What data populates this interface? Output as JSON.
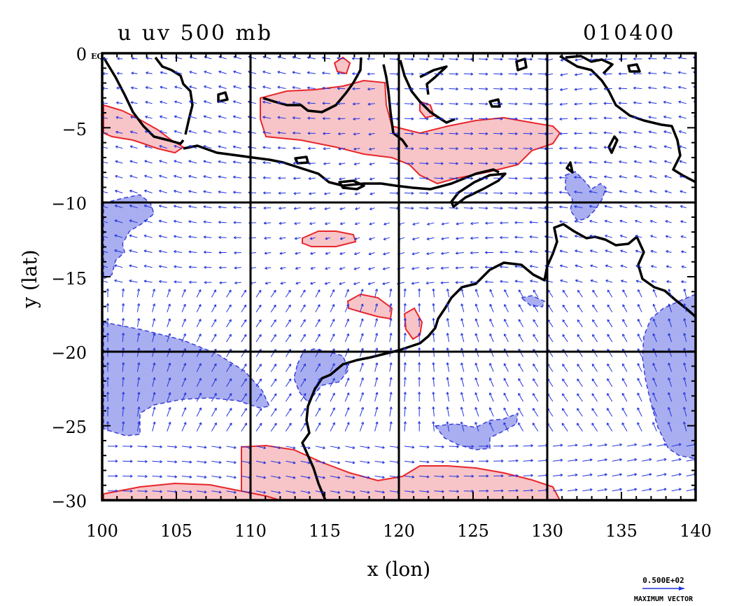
{
  "title_left": "u uv 500 mb",
  "title_right": "010400",
  "chart_data": {
    "type": "map",
    "title": "u uv 500 mb",
    "timestamp": "010400",
    "xlabel": "x (lon)",
    "ylabel": "y (lat)",
    "xlim": [
      100,
      140
    ],
    "ylim": [
      -30,
      0
    ],
    "x_ticks": [
      "100",
      "105",
      "110",
      "115",
      "120",
      "125",
      "130",
      "135",
      "140"
    ],
    "y_ticks": [
      "0",
      "−5",
      "−10",
      "−15",
      "−20",
      "−25",
      "−30"
    ],
    "eq_label": "EQ",
    "gridlines_lon": [
      110,
      120,
      130
    ],
    "gridlines_lat": [
      -10,
      -20
    ],
    "legend": {
      "value": "0.500E+02",
      "label": "MAXIMUM VECTOR"
    },
    "colors": {
      "positive_fill": "#f7c4c8",
      "positive_line": "#e8262a",
      "negative_fill": "#a9aef0",
      "negative_line": "#3a3fd8",
      "vector": "#2233dd",
      "coast": "#000000"
    }
  }
}
